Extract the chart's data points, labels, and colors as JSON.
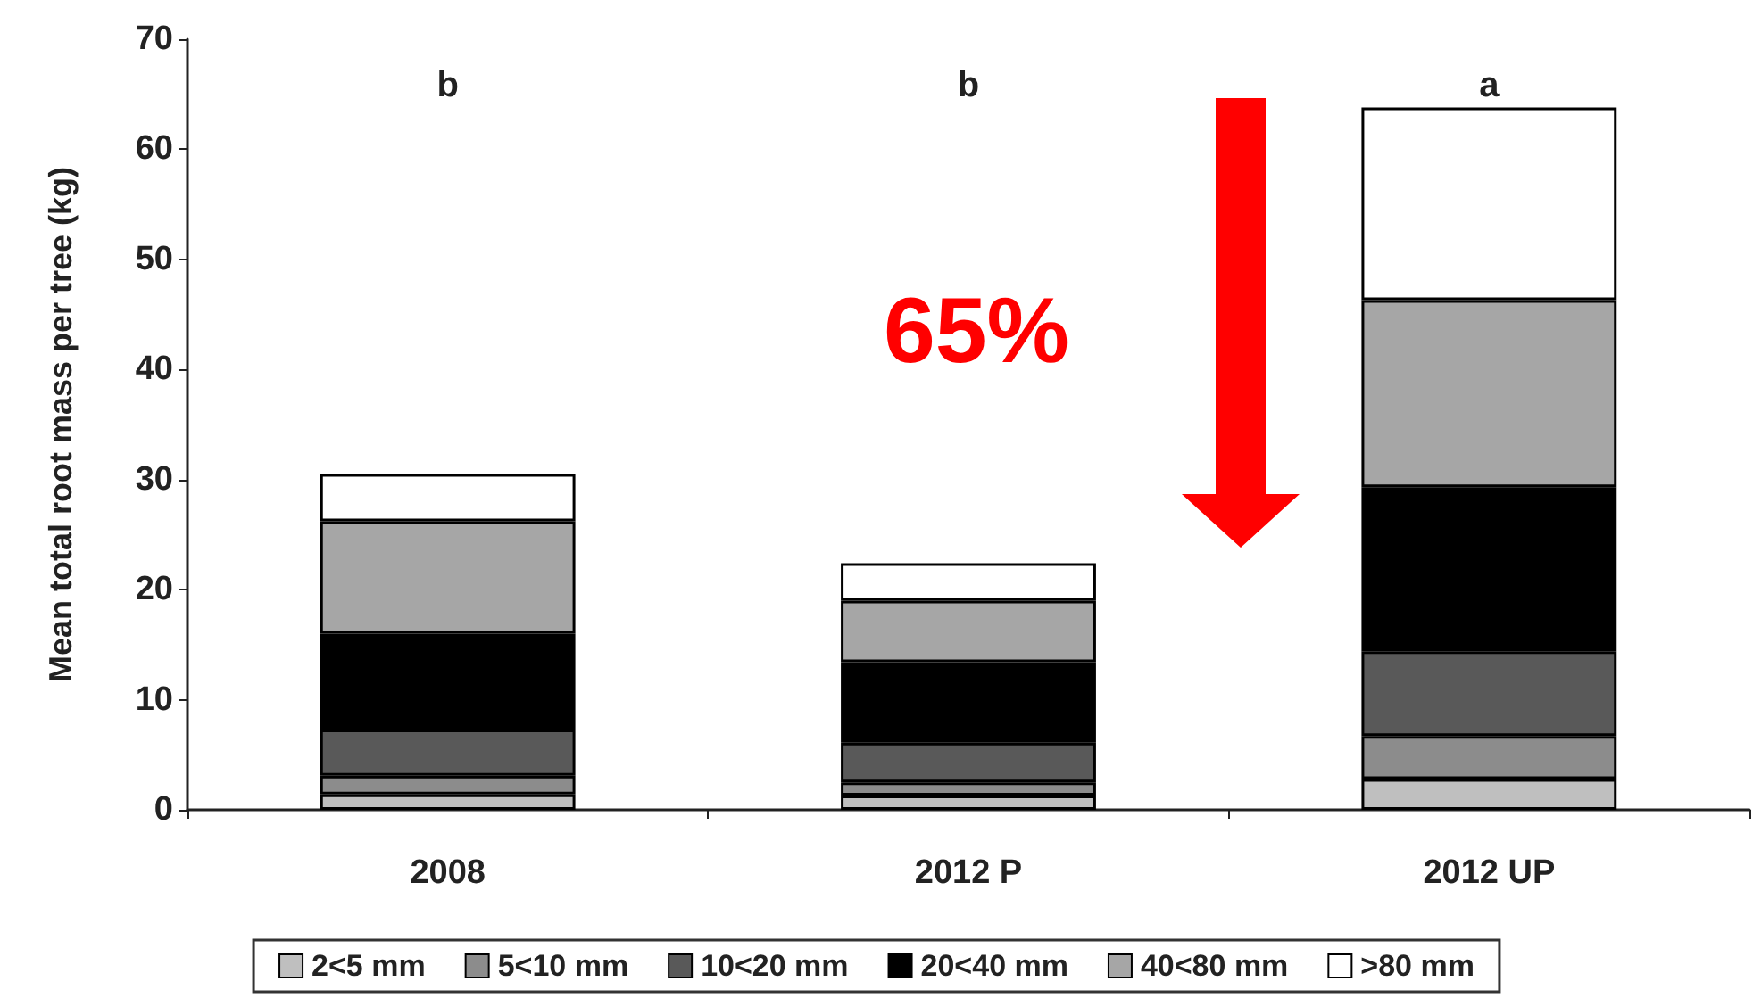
{
  "chart_data": {
    "type": "bar",
    "stacked": true,
    "ylabel": "Mean total root mass per tree (kg)",
    "categories": [
      "2008",
      "2012 P",
      "2012 UP"
    ],
    "series": [
      {
        "name": "2<5 mm",
        "color": "#bfbfbf",
        "values": [
          1.4,
          1.3,
          2.8
        ]
      },
      {
        "name": "5<10 mm",
        "color": "#8c8c8c",
        "values": [
          1.7,
          1.2,
          3.9
        ]
      },
      {
        "name": "10<20 mm",
        "color": "#595959",
        "values": [
          4.2,
          3.6,
          7.7
        ]
      },
      {
        "name": "20<40 mm",
        "color": "#000000",
        "values": [
          8.7,
          7.3,
          14.9
        ]
      },
      {
        "name": "40<80 mm",
        "color": "#a6a6a6",
        "values": [
          10.2,
          5.6,
          17.0
        ]
      },
      {
        "name": ">80 mm",
        "color": "#ffffff",
        "values": [
          4.3,
          3.4,
          17.5
        ]
      }
    ],
    "ylim": [
      0,
      70
    ],
    "yticks": [
      0,
      10,
      20,
      30,
      40,
      50,
      60,
      70
    ],
    "grid": false,
    "legend": "bottom",
    "annotations": [
      "b",
      "b",
      "a",
      "65%"
    ]
  }
}
